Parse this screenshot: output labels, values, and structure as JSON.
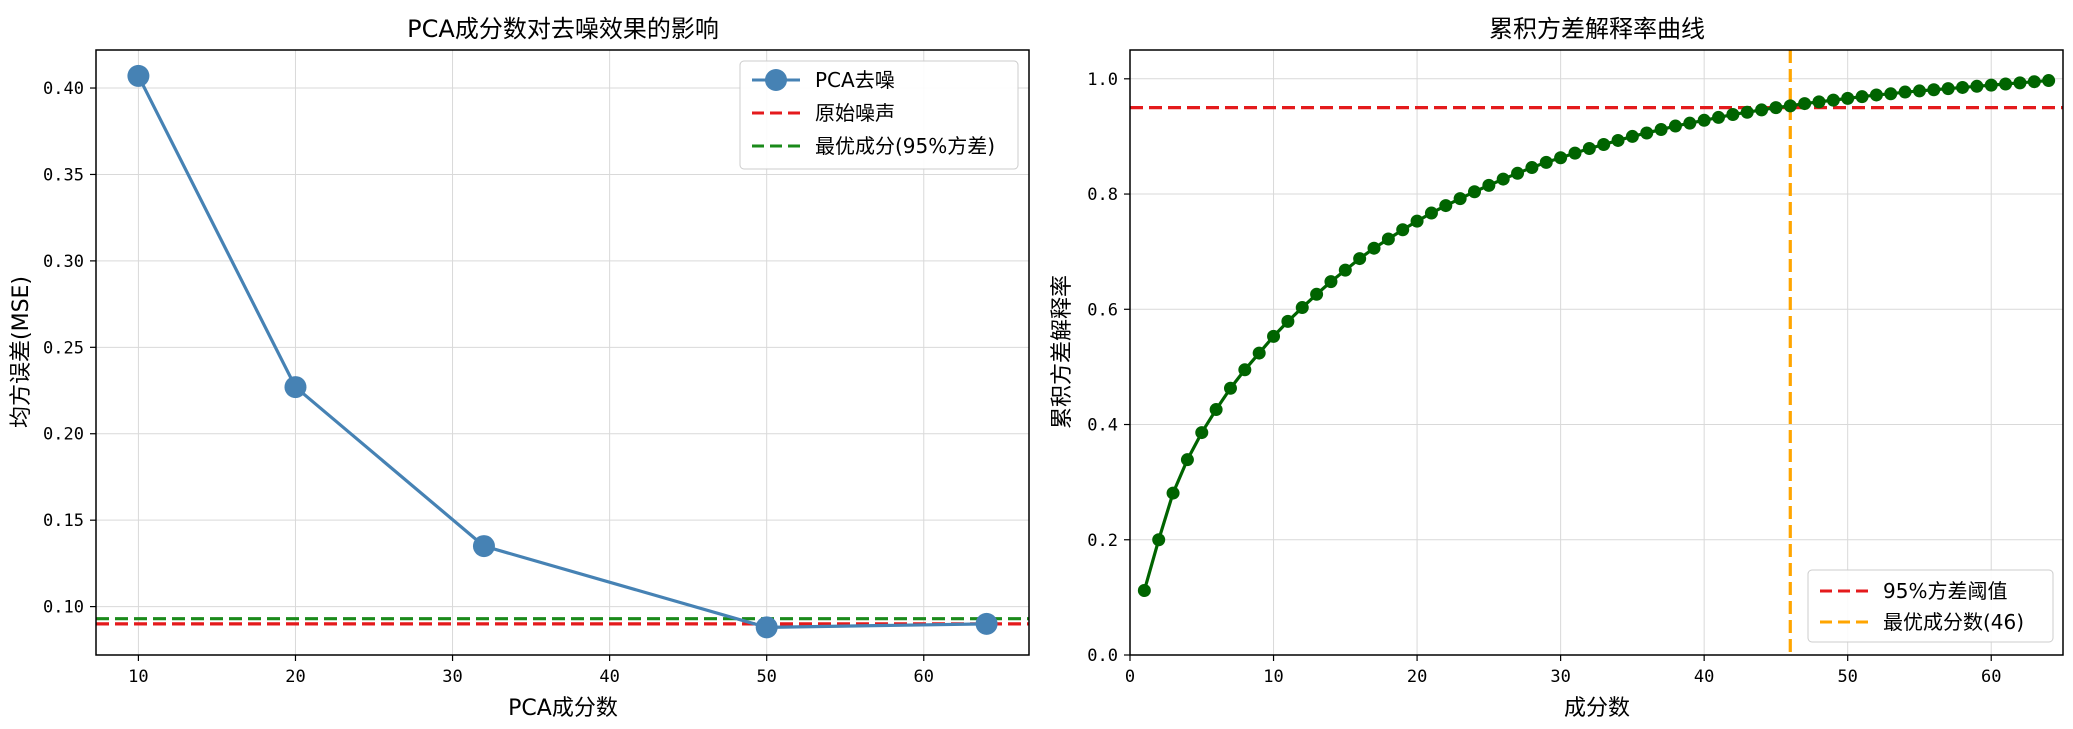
{
  "chart_data": [
    {
      "type": "line",
      "title": "PCA成分数对去噪效果的影响",
      "xlabel": "PCA成分数",
      "ylabel": "均方误差(MSE)",
      "xlim": [
        7.3,
        66.7
      ],
      "ylim": [
        0.072,
        0.422
      ],
      "xticks": [
        10,
        20,
        30,
        40,
        50,
        60
      ],
      "yticks": [
        0.1,
        0.15,
        0.2,
        0.25,
        0.3,
        0.35,
        0.4
      ],
      "xtick_labels": [
        "10",
        "20",
        "30",
        "40",
        "50",
        "60"
      ],
      "ytick_labels": [
        "0.10",
        "0.15",
        "0.20",
        "0.25",
        "0.30",
        "0.35",
        "0.40"
      ],
      "grid": true,
      "legend_position": "upper right",
      "series": [
        {
          "name": "PCA去噪",
          "x": [
            10,
            20,
            32,
            50,
            64
          ],
          "values": [
            0.407,
            0.227,
            0.135,
            0.088,
            0.09
          ],
          "color": "#4682b4",
          "style": "solid",
          "marker": "circle"
        }
      ],
      "hlines": [
        {
          "name": "原始噪声",
          "y": 0.09,
          "color": "#e41a1c",
          "style": "dashed"
        },
        {
          "name": "最优成分(95%方差)",
          "y": 0.093,
          "color": "#1a8a1a",
          "style": "dashed"
        }
      ]
    },
    {
      "type": "line",
      "title": "累积方差解释率曲线",
      "xlabel": "成分数",
      "ylabel": "累积方差解释率",
      "xlim": [
        0,
        65
      ],
      "ylim": [
        0.0,
        1.05
      ],
      "xticks": [
        0,
        10,
        20,
        30,
        40,
        50,
        60
      ],
      "yticks": [
        0.0,
        0.2,
        0.4,
        0.6,
        0.8,
        1.0
      ],
      "xtick_labels": [
        "0",
        "10",
        "20",
        "30",
        "40",
        "50",
        "60"
      ],
      "ytick_labels": [
        "0.0",
        "0.2",
        "0.4",
        "0.6",
        "0.8",
        "1.0"
      ],
      "grid": true,
      "legend_position": "lower right",
      "series": [
        {
          "name": "",
          "color": "#006400",
          "style": "solid",
          "marker": "circle",
          "x": [
            1,
            2,
            3,
            4,
            5,
            6,
            7,
            8,
            9,
            10,
            11,
            12,
            13,
            14,
            15,
            16,
            17,
            18,
            19,
            20,
            21,
            22,
            23,
            24,
            25,
            26,
            27,
            28,
            29,
            30,
            31,
            32,
            33,
            34,
            35,
            36,
            37,
            38,
            39,
            40,
            41,
            42,
            43,
            44,
            45,
            46,
            47,
            48,
            49,
            50,
            51,
            52,
            53,
            54,
            55,
            56,
            57,
            58,
            59,
            60,
            61,
            62,
            63,
            64
          ],
          "values": [
            0.112,
            0.2,
            0.281,
            0.339,
            0.386,
            0.426,
            0.463,
            0.495,
            0.524,
            0.553,
            0.579,
            0.603,
            0.626,
            0.648,
            0.668,
            0.688,
            0.706,
            0.722,
            0.738,
            0.753,
            0.767,
            0.78,
            0.792,
            0.804,
            0.815,
            0.826,
            0.836,
            0.846,
            0.855,
            0.863,
            0.871,
            0.879,
            0.886,
            0.893,
            0.9,
            0.906,
            0.912,
            0.918,
            0.923,
            0.928,
            0.933,
            0.938,
            0.942,
            0.946,
            0.95,
            0.953,
            0.957,
            0.96,
            0.963,
            0.966,
            0.969,
            0.972,
            0.974,
            0.977,
            0.979,
            0.981,
            0.983,
            0.985,
            0.987,
            0.989,
            0.991,
            0.993,
            0.995,
            0.997
          ]
        }
      ],
      "hlines": [
        {
          "name": "95%方差阈值",
          "y": 0.95,
          "color": "#e41a1c",
          "style": "dashed"
        }
      ],
      "vlines": [
        {
          "name": "最优成分数(46)",
          "x": 46,
          "color": "#ffa500",
          "style": "dashed"
        }
      ]
    }
  ]
}
